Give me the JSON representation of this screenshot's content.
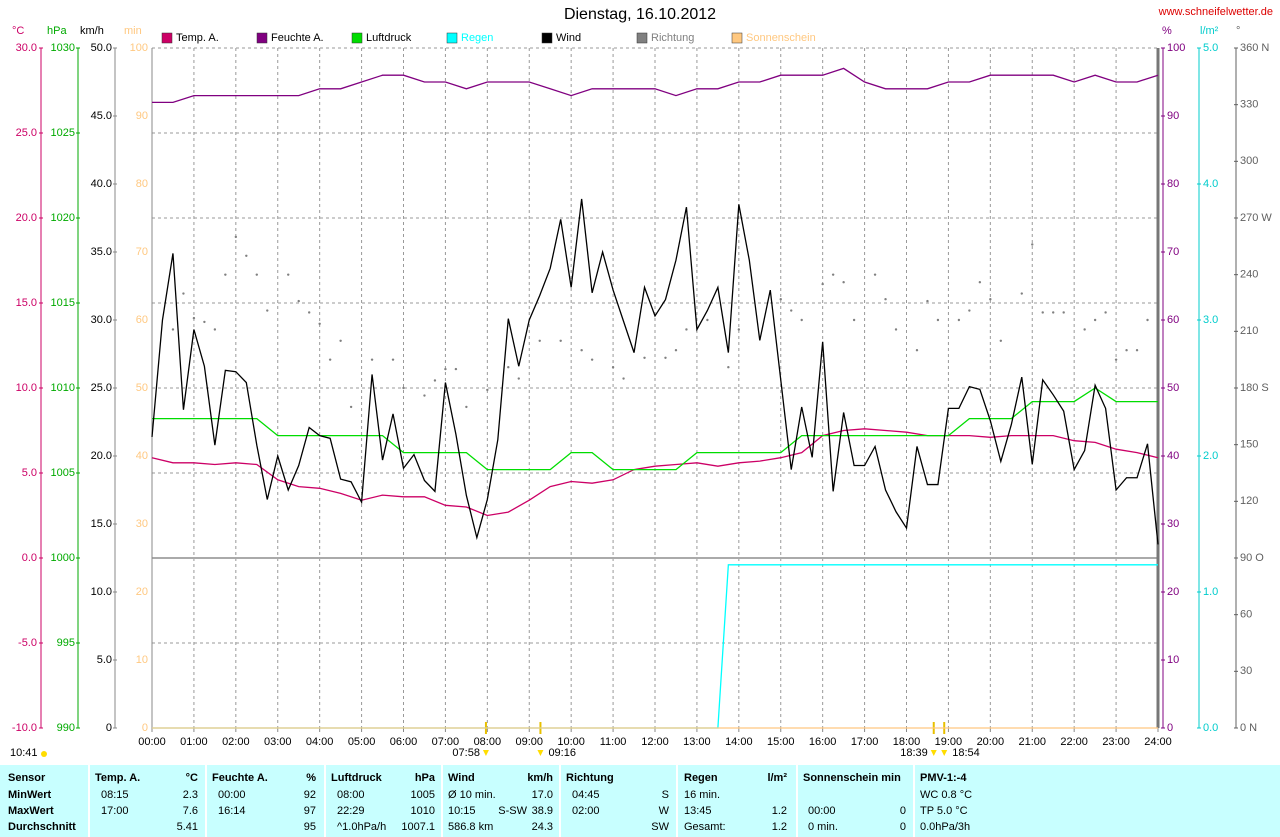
{
  "chart_data": {
    "type": "line",
    "title": "Dienstag, 16.10.2012",
    "source": "www.schneifelwetter.de",
    "grid": true,
    "xlim": [
      0,
      24
    ],
    "xticks": [
      {
        "value": 0,
        "label": "00:00"
      },
      {
        "value": 1,
        "label": "01:00"
      },
      {
        "value": 2,
        "label": "02:00"
      },
      {
        "value": 3,
        "label": "03:00"
      },
      {
        "value": 4,
        "label": "04:00"
      },
      {
        "value": 5,
        "label": "05:00"
      },
      {
        "value": 6,
        "label": "06:00"
      },
      {
        "value": 7,
        "label": "07:00"
      },
      {
        "value": 8,
        "label": "08:00"
      },
      {
        "value": 9,
        "label": "09:00"
      },
      {
        "value": 10,
        "label": "10:00"
      },
      {
        "value": 11,
        "label": "11:00"
      },
      {
        "value": 12,
        "label": "12:00"
      },
      {
        "value": 13,
        "label": "13:00"
      },
      {
        "value": 14,
        "label": "14:00"
      },
      {
        "value": 15,
        "label": "15:00"
      },
      {
        "value": 16,
        "label": "16:00"
      },
      {
        "value": 17,
        "label": "17:00"
      },
      {
        "value": 18,
        "label": "18:00"
      },
      {
        "value": 19,
        "label": "19:00"
      },
      {
        "value": 20,
        "label": "20:00"
      },
      {
        "value": 21,
        "label": "21:00"
      },
      {
        "value": 22,
        "label": "22:00"
      },
      {
        "value": 23,
        "label": "23:00"
      },
      {
        "value": 24,
        "label": "24:00"
      }
    ],
    "yaxes": {
      "temp": {
        "unit": "°C",
        "color": "#cc0066",
        "lim": [
          -10,
          30
        ],
        "ticks": [
          {
            "value": 30,
            "label": "30.0"
          },
          {
            "value": 25,
            "label": "25.0"
          },
          {
            "value": 20,
            "label": "20.0"
          },
          {
            "value": 15,
            "label": "15.0"
          },
          {
            "value": 10,
            "label": "10.0"
          },
          {
            "value": 5,
            "label": "5.0"
          },
          {
            "value": 0,
            "label": "0.0"
          },
          {
            "value": -5,
            "label": "-5.0"
          },
          {
            "value": -10,
            "label": "-10.0"
          }
        ]
      },
      "press": {
        "unit": "hPa",
        "color": "#00aa00",
        "lim": [
          990,
          1030
        ],
        "ticks": [
          1030,
          1025,
          1020,
          1015,
          1010,
          1005,
          1000,
          995,
          990
        ]
      },
      "wind": {
        "unit": "km/h",
        "color": "#000000",
        "lim": [
          0,
          50
        ],
        "ticks": [
          {
            "value": 50,
            "label": "50.0"
          },
          {
            "value": 45,
            "label": "45.0"
          },
          {
            "value": 40,
            "label": "40.0"
          },
          {
            "value": 35,
            "label": "35.0"
          },
          {
            "value": 30,
            "label": "30.0"
          },
          {
            "value": 25,
            "label": "25.0"
          },
          {
            "value": 20,
            "label": "20.0"
          },
          {
            "value": 15,
            "label": "15.0"
          },
          {
            "value": 10,
            "label": "10.0"
          },
          {
            "value": 5,
            "label": "5.0"
          },
          0
        ]
      },
      "sun": {
        "unit": "min",
        "color": "#ffc880",
        "lim": [
          0,
          100
        ],
        "ticks": [
          100,
          90,
          80,
          70,
          60,
          50,
          40,
          30,
          20,
          10,
          0
        ]
      },
      "hum": {
        "unit": "%",
        "color": "#800080",
        "lim": [
          0,
          100
        ],
        "ticks": [
          100,
          90,
          80,
          70,
          60,
          50,
          40,
          30,
          20,
          10,
          0
        ]
      },
      "rain": {
        "unit": "l/m²",
        "color": "#00cccc",
        "lim": [
          0,
          5
        ],
        "ticks": [
          {
            "value": 5,
            "label": "5.0"
          },
          {
            "value": 4,
            "label": "4.0"
          },
          {
            "value": 3,
            "label": "3.0"
          },
          {
            "value": 2,
            "label": "2.0"
          },
          {
            "value": 1,
            "label": "1.0"
          },
          {
            "value": 0,
            "label": "0.0"
          }
        ]
      },
      "dir": {
        "unit": "°",
        "color": "#606060",
        "lim": [
          0,
          360
        ],
        "ticks": [
          {
            "value": 360,
            "label": "360 N"
          },
          330,
          300,
          {
            "value": 270,
            "label": "270 W"
          },
          240,
          210,
          {
            "value": 180,
            "label": "180 S"
          },
          150,
          120,
          {
            "value": 90,
            "label": "90 O"
          },
          60,
          30,
          {
            "value": 0,
            "label": "0 N"
          }
        ]
      }
    },
    "series": [
      {
        "name": "Temp. A.",
        "color": "#cc0066",
        "axis": "temp",
        "kind": "line",
        "x": [
          0,
          0.5,
          1,
          1.5,
          2,
          2.5,
          3,
          3.5,
          4,
          4.5,
          5,
          5.5,
          6,
          6.5,
          7,
          7.5,
          8,
          8.5,
          9,
          9.5,
          10,
          10.5,
          11,
          11.5,
          12,
          12.5,
          13,
          13.5,
          14,
          14.5,
          15,
          15.5,
          16,
          16.5,
          17,
          17.5,
          18,
          18.5,
          19,
          19.5,
          20,
          20.5,
          21,
          21.5,
          22,
          22.5,
          23,
          23.5,
          24
        ],
        "values": [
          5.9,
          5.6,
          5.6,
          5.5,
          5.6,
          5.5,
          4.6,
          4.2,
          4.1,
          3.8,
          3.4,
          3.7,
          3.6,
          3.6,
          3.1,
          3.0,
          2.5,
          2.7,
          3.4,
          4.2,
          4.5,
          4.4,
          4.6,
          5.2,
          5.4,
          5.5,
          5.6,
          5.4,
          5.6,
          5.7,
          5.9,
          6.2,
          7.2,
          7.5,
          7.6,
          7.5,
          7.4,
          7.2,
          7.2,
          7.2,
          7.1,
          7.2,
          7.2,
          7.2,
          6.9,
          6.8,
          6.4,
          6.2,
          5.9
        ]
      },
      {
        "name": "Feuchte A.",
        "color": "#800080",
        "axis": "hum",
        "kind": "line",
        "x": [
          0,
          0.5,
          1,
          1.5,
          2,
          2.5,
          3,
          3.5,
          4,
          4.5,
          5,
          5.5,
          6,
          6.5,
          7,
          7.5,
          8,
          8.5,
          9,
          9.5,
          10,
          10.5,
          11,
          11.5,
          12,
          12.5,
          13,
          13.5,
          14,
          14.5,
          15,
          15.5,
          16,
          16.5,
          17,
          17.5,
          18,
          18.5,
          19,
          19.5,
          20,
          20.5,
          21,
          21.5,
          22,
          22.5,
          23,
          23.5,
          24
        ],
        "values": [
          92,
          92,
          93,
          93,
          93,
          93,
          93,
          93,
          94,
          94,
          95,
          96,
          96,
          95,
          95,
          94,
          95,
          95,
          95,
          94,
          93,
          94,
          94,
          94,
          94,
          93,
          94,
          94,
          95,
          95,
          96,
          96,
          96,
          97,
          95,
          94,
          94,
          94,
          95,
          95,
          96,
          96,
          96,
          96,
          95,
          96,
          95,
          95,
          96
        ]
      },
      {
        "name": "Luftdruck",
        "color": "#00dd00",
        "axis": "press",
        "kind": "line",
        "x": [
          0,
          0.5,
          1,
          1.5,
          2,
          2.5,
          3,
          3.5,
          4,
          4.5,
          5,
          5.5,
          6,
          6.5,
          7,
          7.5,
          8,
          8.5,
          9,
          9.5,
          10,
          10.5,
          11,
          11.5,
          12,
          12.5,
          13,
          13.5,
          14,
          14.5,
          15,
          15.5,
          16,
          16.5,
          17,
          17.5,
          18,
          18.5,
          19,
          19.5,
          20,
          20.5,
          21,
          21.5,
          22,
          22.5,
          23,
          23.5,
          24
        ],
        "values": [
          1008.2,
          1008.2,
          1008.2,
          1008.2,
          1008.2,
          1008.2,
          1007.2,
          1007.2,
          1007.2,
          1007.2,
          1007.2,
          1007.2,
          1006.2,
          1006.2,
          1006.2,
          1006.2,
          1005.2,
          1005.2,
          1005.2,
          1005.2,
          1006.2,
          1006.2,
          1005.2,
          1005.2,
          1005.2,
          1005.2,
          1006.2,
          1006.2,
          1006.2,
          1006.2,
          1006.2,
          1007.2,
          1007.2,
          1007.2,
          1007.2,
          1007.2,
          1007.2,
          1007.2,
          1007.2,
          1008.2,
          1008.2,
          1008.2,
          1009.2,
          1009.2,
          1009.2,
          1010,
          1009.2,
          1009.2,
          1009.2
        ]
      },
      {
        "name": "Regen",
        "color": "#00ffff",
        "axis": "rain",
        "kind": "line",
        "x": [
          0,
          13.5,
          13.75,
          24
        ],
        "values": [
          0,
          0,
          1.2,
          1.2
        ]
      },
      {
        "name": "Wind",
        "color": "#000000",
        "axis": "wind",
        "kind": "line",
        "x": [
          0,
          0.25,
          0.5,
          0.75,
          1,
          1.25,
          1.5,
          1.75,
          2,
          2.25,
          2.5,
          2.75,
          3,
          3.25,
          3.5,
          3.75,
          4,
          4.25,
          4.5,
          4.75,
          5,
          5.25,
          5.5,
          5.75,
          6,
          6.25,
          6.5,
          6.75,
          7,
          7.25,
          7.5,
          7.75,
          8,
          8.25,
          8.5,
          8.75,
          9,
          9.25,
          9.5,
          9.75,
          10,
          10.25,
          10.5,
          10.75,
          11,
          11.25,
          11.5,
          11.75,
          12,
          12.25,
          12.5,
          12.75,
          13,
          13.25,
          13.5,
          13.75,
          14,
          14.25,
          14.5,
          14.75,
          15,
          15.25,
          15.5,
          15.75,
          16,
          16.25,
          16.5,
          16.75,
          17,
          17.25,
          17.5,
          17.75,
          18,
          18.25,
          18.5,
          18.75,
          19,
          19.25,
          19.5,
          19.75,
          20,
          20.25,
          20.5,
          20.75,
          21,
          21.25,
          21.5,
          21.75,
          22,
          22.25,
          22.5,
          22.75,
          23,
          23.25,
          23.5,
          23.75,
          24
        ],
        "values": [
          21.4,
          30.0,
          34.9,
          23.4,
          29.3,
          26.6,
          20.8,
          26.3,
          26.2,
          25.4,
          20.8,
          16.8,
          20.0,
          17.5,
          19.3,
          22.1,
          21.5,
          21.3,
          18.3,
          18.1,
          16.6,
          26.0,
          19.7,
          23.1,
          19.1,
          20.1,
          18.2,
          17.4,
          25.4,
          21.6,
          17.1,
          14.0,
          16.8,
          21.2,
          30.1,
          26.6,
          30.0,
          31.8,
          33.8,
          37.4,
          32.4,
          38.9,
          32.0,
          35.0,
          32.2,
          29.9,
          27.6,
          32.4,
          30.3,
          31.5,
          34.4,
          38.3,
          29.3,
          30.7,
          32.4,
          27.6,
          38.5,
          34.4,
          28.5,
          32.2,
          25.6,
          19.0,
          23.6,
          19.9,
          28.4,
          17.4,
          23.2,
          19.3,
          19.3,
          20.7,
          17.5,
          15.9,
          14.7,
          20.7,
          17.9,
          17.9,
          23.5,
          23.5,
          25.1,
          24.9,
          22.6,
          19.6,
          22.3,
          25.8,
          19.4,
          25.6,
          24.5,
          23.3,
          19.0,
          20.4,
          25.2,
          23.5,
          17.5,
          18.4,
          18.4,
          20.9,
          13.5
        ]
      },
      {
        "name": "Richtung",
        "color": "#808080",
        "axis": "dir",
        "kind": "dots",
        "x": [
          0.5,
          0.75,
          1,
          1.25,
          1.5,
          1.75,
          2,
          2.25,
          2.5,
          2.75,
          3.25,
          3.5,
          3.75,
          4,
          4.25,
          4.5,
          4.75,
          5.25,
          5.75,
          6,
          6.5,
          6.75,
          7,
          7.25,
          7.5,
          8,
          8.5,
          8.75,
          9.25,
          9.75,
          10.25,
          10.5,
          11,
          11.25,
          11.75,
          12.25,
          12.5,
          12.75,
          13.25,
          13.75,
          14,
          15,
          15.25,
          15.5,
          16,
          16.25,
          16.5,
          16.75,
          17.25,
          17.5,
          17.75,
          18.25,
          18.5,
          18.75,
          19.25,
          19.5,
          19.75,
          20,
          20.25,
          20.75,
          21,
          21.25,
          21.5,
          21.75,
          22.25,
          22.5,
          22.75,
          23,
          23.25,
          23.5,
          23.75
        ],
        "values": [
          211,
          230,
          217,
          215,
          211,
          240,
          260,
          250,
          240,
          221,
          240,
          226,
          220,
          214,
          195,
          205,
          170,
          195,
          195,
          180,
          176,
          184,
          190,
          190,
          170,
          179,
          191,
          185,
          205,
          205,
          200,
          195,
          191,
          185,
          196,
          196,
          200,
          211,
          216,
          191,
          211,
          227,
          221,
          216,
          235,
          240,
          236,
          216,
          240,
          227,
          211,
          200,
          226,
          216,
          216,
          221,
          236,
          227,
          205,
          230,
          256,
          220,
          220,
          220,
          211,
          216,
          220,
          195,
          200,
          200,
          216
        ]
      },
      {
        "name": "Sonnenschein",
        "color": "#ffc880",
        "axis": "sun",
        "kind": "line",
        "x": [
          0,
          24
        ],
        "values": [
          0,
          0
        ]
      }
    ],
    "annotations": [
      {
        "x": 7.967,
        "label": "07:58",
        "side": "left"
      },
      {
        "x": 9.267,
        "label": "09:16",
        "side": "right"
      },
      {
        "x": 18.65,
        "label": "18:39",
        "side": "left"
      },
      {
        "x": 18.9,
        "label": "18:54",
        "side": "right"
      }
    ],
    "day_length": "10:41"
  },
  "table": {
    "header": {
      "label": "Sensor",
      "temp": "Temp. A.",
      "temp_unit": "°C",
      "hum": "Feuchte A.",
      "hum_unit": "%",
      "press": "Luftdruck",
      "press_unit": "hPa",
      "wind": "Wind",
      "wind_unit": "km/h",
      "dir": "Richtung",
      "rain": "Regen",
      "rain_unit": "l/m²",
      "sun": "Sonnenschein min",
      "pmv": "PMV-1:-4"
    },
    "rows": [
      {
        "label": "MinWert",
        "temp_time": "08:15",
        "temp": "2.3",
        "hum_time": "00:00",
        "hum": "92",
        "press_time": "08:00",
        "press": "1005",
        "wind_time": "Ø 10 min.",
        "wind": "17.0",
        "dir_time": "04:45",
        "dir": "S",
        "rain_time": "16 min.",
        "pmv": "WC 0.8 °C"
      },
      {
        "label": "MaxWert",
        "temp_time": "17:00",
        "temp": "7.6",
        "hum_time": "16:14",
        "hum": "97",
        "press_time": "22:29",
        "press": "1010",
        "wind_time": "10:15",
        "wind_dir": "S-SW",
        "wind": "38.9",
        "dir_time": "02:00",
        "dir": "W",
        "rain_time": "13:45",
        "rain": "1.2",
        "sun_time": "00:00",
        "sun": "0",
        "pmv": "TP 5.0 °C"
      },
      {
        "label": "Durchschnitt",
        "temp": "5.41",
        "hum": "95",
        "press_time": "^1.0hPa/h",
        "press": "1007.1",
        "wind_time": "586.8 km",
        "wind": "24.3",
        "dir": "SW",
        "rain_time": "Gesamt:",
        "rain": "1.2",
        "sun_time": "0 min.",
        "sun": "0",
        "pmv": "0.0hPa/3h"
      }
    ]
  }
}
